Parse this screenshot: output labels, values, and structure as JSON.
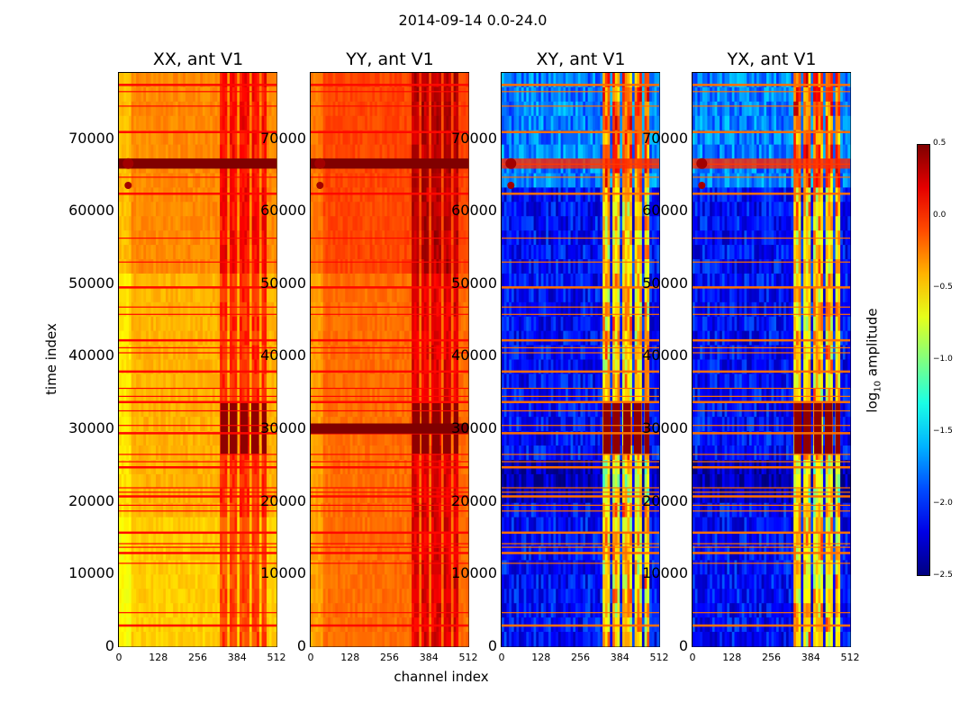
{
  "figure": {
    "suptitle": "2014-09-14 0.0-24.0",
    "ylabel": "time index",
    "xlabel": "channel index"
  },
  "chart_data": {
    "type": "heatmap",
    "panels": [
      {
        "title": "XX, ant V1",
        "colormap": "warm",
        "base_level": -0.4
      },
      {
        "title": "YY, ant V1",
        "colormap": "warm",
        "base_level": -0.2
      },
      {
        "title": "XY, ant V1",
        "colormap": "full",
        "base_level": -2.1
      },
      {
        "title": "YX, ant V1",
        "colormap": "full",
        "base_level": -2.1
      }
    ],
    "x_ticks": [
      "0",
      "128",
      "256",
      "384",
      "512"
    ],
    "y_ticks": [
      "0",
      "10000",
      "20000",
      "30000",
      "40000",
      "50000",
      "60000",
      "70000"
    ],
    "xlim": [
      0,
      512
    ],
    "ylim": [
      0,
      79000
    ],
    "colorbar": {
      "label_prefix": "log",
      "label_sub": "10",
      "label_suffix": " amplitude",
      "ticks": [
        "0.5",
        "0.0",
        "−0.5",
        "−1.0",
        "−1.5",
        "−2.0",
        "−2.5"
      ],
      "range": [
        -2.5,
        0.5
      ]
    },
    "flagged_time_rows": [
      3000,
      4700,
      11500,
      13000,
      13700,
      14200,
      15800,
      18700,
      19500,
      20800,
      21300,
      21900,
      24800,
      25500,
      26500,
      29500,
      30500,
      32500,
      33800,
      34500,
      35600,
      38000,
      40500,
      41200,
      42300,
      45800,
      46800,
      49600,
      53000,
      56300,
      62500,
      64700,
      66500,
      71000,
      74500,
      76500,
      77500
    ],
    "rfi_channel_bands": [
      [
        330,
        355
      ],
      [
        360,
        385
      ],
      [
        395,
        420
      ],
      [
        430,
        455
      ],
      [
        465,
        480
      ]
    ]
  }
}
